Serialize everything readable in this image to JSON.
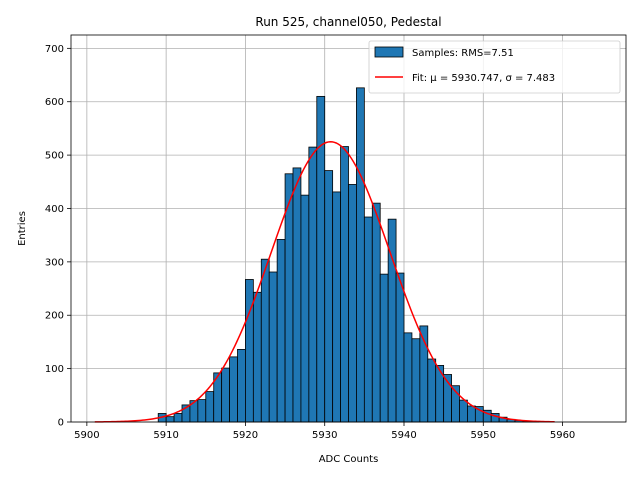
{
  "chart_data": {
    "type": "bar",
    "title": "Run 525, channel050, Pedestal",
    "xlabel": "ADC Counts",
    "ylabel": "Entries",
    "xlim": [
      5898,
      5968
    ],
    "ylim": [
      0,
      725
    ],
    "xticks": [
      5900,
      5910,
      5920,
      5930,
      5940,
      5950,
      5960
    ],
    "yticks": [
      0,
      100,
      200,
      300,
      400,
      500,
      600,
      700
    ],
    "grid": true,
    "legend_position": "top-right",
    "series": [
      {
        "name": "Samples: RMS=7.51",
        "kind": "histogram",
        "bin_width": 1,
        "bin_edges_start": 5909,
        "values": [
          16,
          10,
          16,
          32,
          40,
          42,
          57,
          92,
          101,
          122,
          136,
          267,
          243,
          305,
          281,
          342,
          465,
          476,
          425,
          515,
          610,
          471,
          431,
          516,
          445,
          626,
          384,
          410,
          277,
          380,
          279,
          167,
          156,
          180,
          118,
          106,
          89,
          68,
          41,
          30,
          29,
          22,
          16,
          9,
          5,
          3,
          2,
          1
        ],
        "color": "#1f77b4"
      },
      {
        "name": "Fit: μ = 5930.747, σ = 7.483",
        "kind": "gaussian",
        "mu": 5930.747,
        "sigma": 7.483,
        "amplitude": 525,
        "x_range": [
          5901,
          5959
        ],
        "color": "#ff0000"
      }
    ]
  }
}
